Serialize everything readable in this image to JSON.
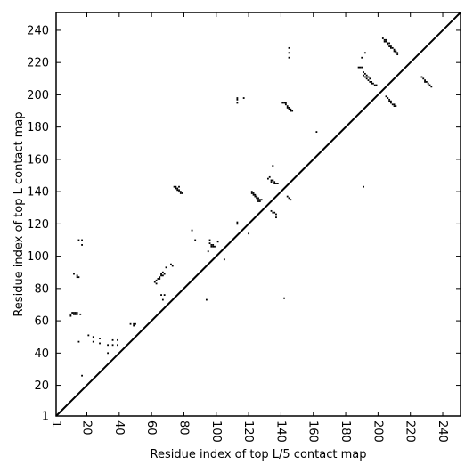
{
  "chart_data": {
    "type": "scatter",
    "xlabel": "Residue index of top L/5 contact map",
    "ylabel": "Residue index of top L contact map",
    "xlim": [
      1,
      251
    ],
    "ylim": [
      1,
      251
    ],
    "x_ticks": [
      1,
      20,
      40,
      60,
      80,
      100,
      120,
      140,
      160,
      180,
      200,
      220,
      240
    ],
    "y_ticks": [
      1,
      20,
      40,
      60,
      80,
      100,
      120,
      140,
      160,
      180,
      200,
      220,
      240
    ],
    "x_tick_labels": [
      "1",
      "20",
      "40",
      "60",
      "80",
      "100",
      "120",
      "140",
      "160",
      "180",
      "200",
      "220",
      "240"
    ],
    "y_tick_labels": [
      "1",
      "20",
      "40",
      "60",
      "80",
      "100",
      "120",
      "140",
      "160",
      "180",
      "200",
      "220",
      "240"
    ],
    "x_tick_rotation": -90,
    "diagonal": true,
    "grid": false,
    "colors": {
      "marks": "#000000",
      "diagonal": "#000000",
      "frame": "#000000",
      "background": "#ffffff"
    },
    "series": [
      {
        "marker": "square",
        "points": [
          [
            10,
            63
          ],
          [
            10,
            64
          ],
          [
            11,
            65
          ],
          [
            12,
            64
          ],
          [
            12,
            65
          ],
          [
            13,
            64
          ],
          [
            13,
            65
          ],
          [
            14,
            64
          ],
          [
            14,
            65
          ],
          [
            16,
            64
          ],
          [
            12,
            89
          ],
          [
            14,
            88
          ],
          [
            14,
            87
          ],
          [
            15,
            87
          ],
          [
            15,
            110
          ],
          [
            17,
            110
          ],
          [
            17,
            107
          ],
          [
            15,
            47
          ],
          [
            17,
            26
          ],
          [
            21,
            51
          ],
          [
            24,
            50
          ],
          [
            24,
            47
          ],
          [
            28,
            49
          ],
          [
            28,
            46
          ],
          [
            33,
            40
          ],
          [
            33,
            45
          ],
          [
            36,
            45
          ],
          [
            36,
            48
          ],
          [
            39,
            48
          ],
          [
            39,
            45
          ],
          [
            47,
            58
          ],
          [
            49,
            57
          ],
          [
            49,
            58
          ],
          [
            50,
            58
          ],
          [
            62,
            84
          ],
          [
            63,
            85
          ],
          [
            63,
            83
          ],
          [
            64,
            86
          ],
          [
            65,
            87
          ],
          [
            65,
            86
          ],
          [
            66,
            88
          ],
          [
            66,
            89
          ],
          [
            67,
            88
          ],
          [
            67,
            90
          ],
          [
            68,
            89
          ],
          [
            66,
            76
          ],
          [
            67,
            73
          ],
          [
            68,
            76
          ],
          [
            69,
            93
          ],
          [
            72,
            95
          ],
          [
            73,
            94
          ],
          [
            74,
            143
          ],
          [
            75,
            143
          ],
          [
            75,
            142
          ],
          [
            76,
            142
          ],
          [
            76,
            141
          ],
          [
            77,
            143
          ],
          [
            77,
            141
          ],
          [
            77,
            140
          ],
          [
            78,
            140
          ],
          [
            78,
            139
          ],
          [
            79,
            139
          ],
          [
            85,
            116
          ],
          [
            87,
            110
          ],
          [
            94,
            73
          ],
          [
            95,
            103
          ],
          [
            96,
            108
          ],
          [
            96,
            110
          ],
          [
            97,
            106
          ],
          [
            97,
            107
          ],
          [
            98,
            106
          ],
          [
            98,
            107
          ],
          [
            99,
            106
          ],
          [
            101,
            109
          ],
          [
            105,
            98
          ],
          [
            113,
            121
          ],
          [
            113,
            120
          ],
          [
            113,
            195
          ],
          [
            113,
            197
          ],
          [
            113,
            198
          ],
          [
            117,
            198
          ],
          [
            120,
            114
          ],
          [
            122,
            140
          ],
          [
            122,
            139
          ],
          [
            123,
            139
          ],
          [
            123,
            138
          ],
          [
            124,
            138
          ],
          [
            124,
            137
          ],
          [
            125,
            137
          ],
          [
            125,
            136
          ],
          [
            126,
            136
          ],
          [
            126,
            135
          ],
          [
            127,
            135
          ],
          [
            128,
            135
          ],
          [
            126,
            134
          ],
          [
            127,
            134
          ],
          [
            132,
            148
          ],
          [
            133,
            149
          ],
          [
            134,
            147
          ],
          [
            134,
            146
          ],
          [
            135,
            147
          ],
          [
            136,
            146
          ],
          [
            136,
            145
          ],
          [
            137,
            145
          ],
          [
            138,
            145
          ],
          [
            135,
            156
          ],
          [
            134,
            128
          ],
          [
            135,
            127
          ],
          [
            136,
            127
          ],
          [
            137,
            126
          ],
          [
            137,
            124
          ],
          [
            142,
            74
          ],
          [
            144,
            137
          ],
          [
            145,
            136
          ],
          [
            146,
            135
          ],
          [
            141,
            195
          ],
          [
            142,
            195
          ],
          [
            143,
            195
          ],
          [
            143,
            194
          ],
          [
            144,
            193
          ],
          [
            144,
            192
          ],
          [
            145,
            192
          ],
          [
            145,
            191
          ],
          [
            146,
            191
          ],
          [
            146,
            190
          ],
          [
            147,
            190
          ],
          [
            145,
            223
          ],
          [
            145,
            226
          ],
          [
            145,
            229
          ],
          [
            162,
            177
          ],
          [
            188,
            217
          ],
          [
            189,
            217
          ],
          [
            190,
            217
          ],
          [
            190,
            223
          ],
          [
            191,
            214
          ],
          [
            192,
            213
          ],
          [
            191,
            212
          ],
          [
            192,
            211
          ],
          [
            193,
            212
          ],
          [
            193,
            210
          ],
          [
            194,
            211
          ],
          [
            194,
            209
          ],
          [
            195,
            210
          ],
          [
            195,
            208
          ],
          [
            196,
            208
          ],
          [
            196,
            207
          ],
          [
            197,
            207
          ],
          [
            198,
            206
          ],
          [
            199,
            206
          ],
          [
            191,
            143
          ],
          [
            192,
            226
          ],
          [
            203,
            235
          ],
          [
            204,
            234
          ],
          [
            204,
            233
          ],
          [
            205,
            234
          ],
          [
            205,
            233
          ],
          [
            206,
            232
          ],
          [
            206,
            231
          ],
          [
            207,
            232
          ],
          [
            207,
            230
          ],
          [
            208,
            230
          ],
          [
            208,
            229
          ],
          [
            209,
            229
          ],
          [
            210,
            228
          ],
          [
            210,
            227
          ],
          [
            211,
            227
          ],
          [
            211,
            226
          ],
          [
            212,
            226
          ],
          [
            212,
            225
          ],
          [
            205,
            199
          ],
          [
            206,
            198
          ],
          [
            207,
            197
          ],
          [
            207,
            196
          ],
          [
            208,
            196
          ],
          [
            208,
            195
          ],
          [
            209,
            194
          ],
          [
            210,
            194
          ],
          [
            210,
            193
          ],
          [
            211,
            193
          ],
          [
            227,
            211
          ],
          [
            228,
            210
          ],
          [
            229,
            209
          ],
          [
            229,
            208
          ],
          [
            230,
            208
          ],
          [
            231,
            207
          ],
          [
            232,
            206
          ],
          [
            233,
            205
          ]
        ]
      }
    ]
  }
}
